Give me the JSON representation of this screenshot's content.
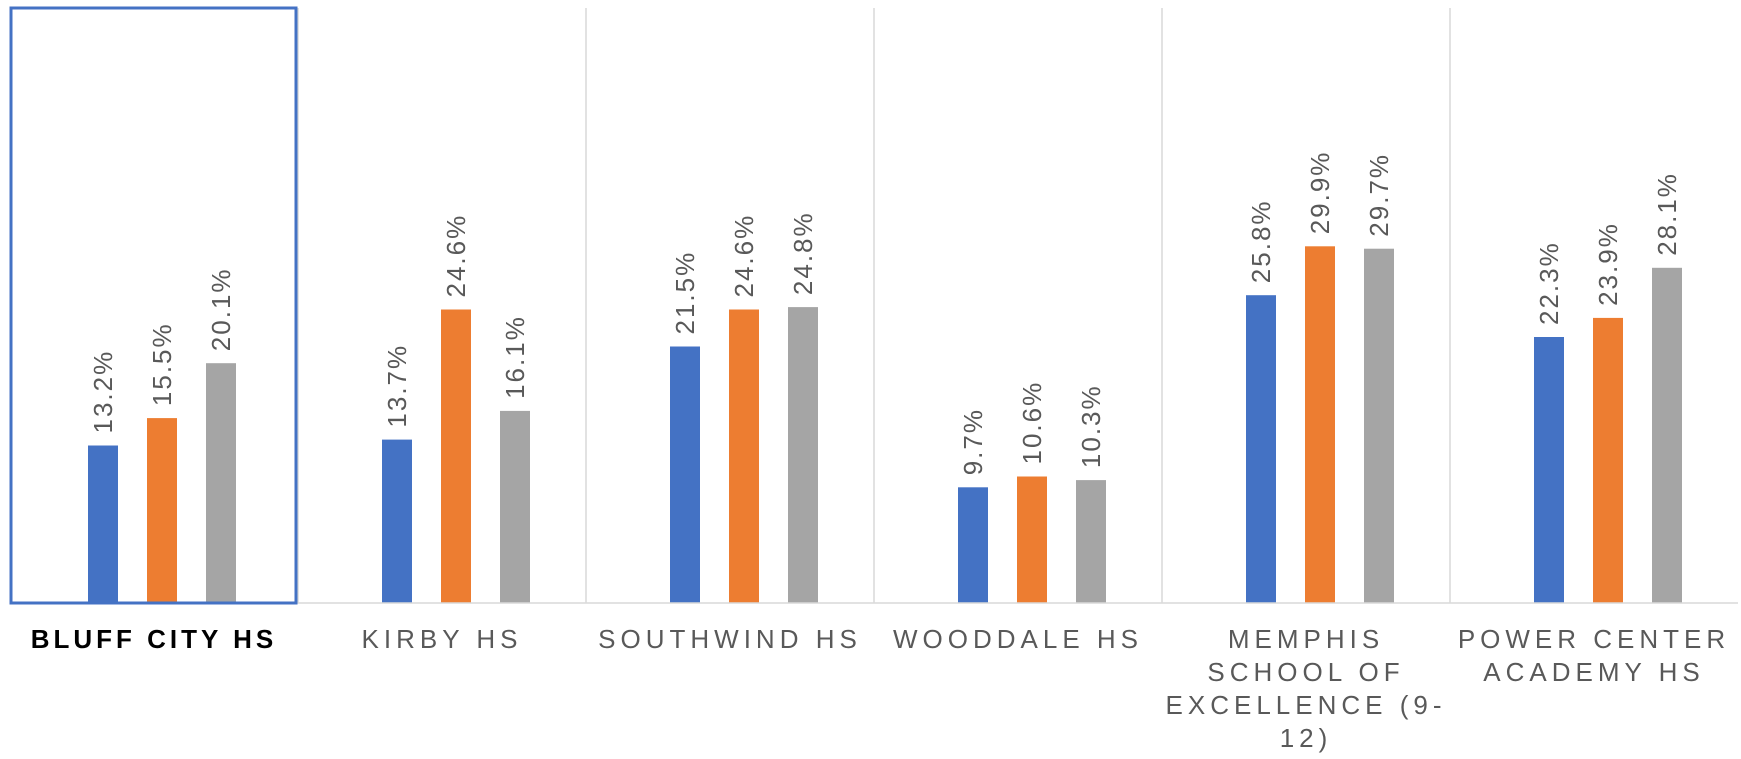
{
  "chart_data": {
    "type": "bar",
    "categories": [
      "BLUFF CITY HS",
      "KIRBY HS",
      "SOUTHWIND HS",
      "WOODDALE HS",
      "MEMPHIS SCHOOL OF EXCELLENCE (9-12)",
      "POWER CENTER ACADEMY HS"
    ],
    "highlighted_category": "BLUFF CITY HS",
    "series": [
      {
        "color": "#4472C4",
        "values": [
          13.2,
          13.7,
          21.5,
          9.7,
          25.8,
          22.3
        ]
      },
      {
        "color": "#ED7D31",
        "values": [
          15.5,
          24.6,
          24.6,
          10.6,
          29.9,
          23.9
        ]
      },
      {
        "color": "#A5A5A5",
        "values": [
          20.1,
          16.1,
          24.8,
          10.3,
          29.7,
          28.1
        ]
      }
    ],
    "data_labels": [
      [
        "13.2%",
        "15.5%",
        "20.1%"
      ],
      [
        "13.7%",
        "24.6%",
        "16.1%"
      ],
      [
        "21.5%",
        "24.6%",
        "24.8%"
      ],
      [
        "9.7%",
        "10.6%",
        "10.3%"
      ],
      [
        "25.8%",
        "29.9%",
        "29.7%"
      ],
      [
        "22.3%",
        "23.9%",
        "28.1%"
      ]
    ],
    "ylim": [
      0,
      30
    ],
    "title": "",
    "xlabel": "",
    "ylabel": "",
    "legend": "none",
    "grid": false,
    "category_separators": true,
    "colors": {
      "highlight_border": "#4472C4",
      "axis": "#D9D9D9",
      "data_label": "#595959",
      "category_label": "#595959",
      "highlight_label": "#000000"
    }
  }
}
